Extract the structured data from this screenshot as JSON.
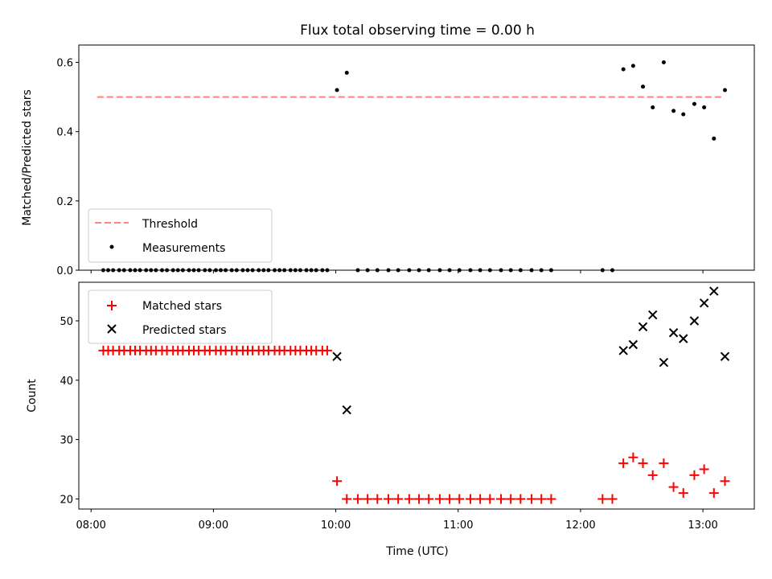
{
  "chart_data": {
    "title": "Flux total observing time = 0.00 h",
    "xlabel": "Time (UTC)",
    "x_ticks": [
      "08:00",
      "09:00",
      "10:00",
      "11:00",
      "12:00",
      "13:00"
    ],
    "x_tick_hours": [
      8,
      9,
      10,
      11,
      12,
      13
    ],
    "x_range_hours": [
      7.9,
      13.42
    ],
    "panels": [
      {
        "type": "scatter",
        "ylabel": "Matched/Predicted stars",
        "ylim": [
          0.0,
          0.65
        ],
        "yticks": [
          0.0,
          0.2,
          0.4,
          0.6
        ],
        "ytick_labels": [
          "0.0",
          "0.2",
          "0.4",
          "0.6"
        ],
        "legend_position": "lower-left",
        "threshold": {
          "name": "Threshold",
          "value": 0.5,
          "x_start": 8.05,
          "x_end": 13.15,
          "color": "#ff7f7f"
        },
        "series": [
          {
            "name": "Measurements",
            "marker": "dot",
            "color": "#000000",
            "points": [
              [
                8.1,
                0
              ],
              [
                8.14,
                0
              ],
              [
                8.18,
                0
              ],
              [
                8.23,
                0
              ],
              [
                8.27,
                0
              ],
              [
                8.32,
                0
              ],
              [
                8.36,
                0
              ],
              [
                8.4,
                0
              ],
              [
                8.45,
                0
              ],
              [
                8.49,
                0
              ],
              [
                8.53,
                0
              ],
              [
                8.58,
                0
              ],
              [
                8.62,
                0
              ],
              [
                8.67,
                0
              ],
              [
                8.71,
                0
              ],
              [
                8.75,
                0
              ],
              [
                8.8,
                0
              ],
              [
                8.84,
                0
              ],
              [
                8.88,
                0
              ],
              [
                8.93,
                0
              ],
              [
                8.97,
                0
              ],
              [
                9.02,
                0
              ],
              [
                9.06,
                0
              ],
              [
                9.1,
                0
              ],
              [
                9.15,
                0
              ],
              [
                9.19,
                0
              ],
              [
                9.24,
                0
              ],
              [
                9.28,
                0
              ],
              [
                9.32,
                0
              ],
              [
                9.37,
                0
              ],
              [
                9.41,
                0
              ],
              [
                9.45,
                0
              ],
              [
                9.5,
                0
              ],
              [
                9.54,
                0
              ],
              [
                9.58,
                0
              ],
              [
                9.63,
                0
              ],
              [
                9.67,
                0
              ],
              [
                9.71,
                0
              ],
              [
                9.76,
                0
              ],
              [
                9.8,
                0
              ],
              [
                9.84,
                0
              ],
              [
                9.89,
                0
              ],
              [
                9.93,
                0
              ],
              [
                10.01,
                0.52
              ],
              [
                10.09,
                0.57
              ],
              [
                10.18,
                0
              ],
              [
                10.26,
                0
              ],
              [
                10.34,
                0
              ],
              [
                10.43,
                0
              ],
              [
                10.51,
                0
              ],
              [
                10.6,
                0
              ],
              [
                10.68,
                0
              ],
              [
                10.76,
                0
              ],
              [
                10.85,
                0
              ],
              [
                10.93,
                0
              ],
              [
                11.01,
                0
              ],
              [
                11.1,
                0
              ],
              [
                11.18,
                0
              ],
              [
                11.26,
                0
              ],
              [
                11.35,
                0
              ],
              [
                11.43,
                0
              ],
              [
                11.51,
                0
              ],
              [
                11.6,
                0
              ],
              [
                11.68,
                0
              ],
              [
                11.76,
                0
              ],
              [
                12.18,
                0
              ],
              [
                12.26,
                0
              ],
              [
                12.35,
                0.58
              ],
              [
                12.43,
                0.59
              ],
              [
                12.51,
                0.53
              ],
              [
                12.59,
                0.47
              ],
              [
                12.68,
                0.6
              ],
              [
                12.76,
                0.46
              ],
              [
                12.84,
                0.45
              ],
              [
                12.93,
                0.48
              ],
              [
                13.01,
                0.47
              ],
              [
                13.09,
                0.38
              ],
              [
                13.18,
                0.52
              ]
            ]
          }
        ]
      },
      {
        "type": "scatter",
        "ylabel": "Count",
        "ylim": [
          18.3,
          56.5
        ],
        "yticks": [
          20,
          30,
          40,
          50
        ],
        "ytick_labels": [
          "20",
          "30",
          "40",
          "50"
        ],
        "legend_position": "upper-left",
        "series": [
          {
            "name": "Matched stars",
            "marker": "plus",
            "color": "#ff0000",
            "points": [
              [
                8.1,
                45
              ],
              [
                8.14,
                45
              ],
              [
                8.18,
                45
              ],
              [
                8.23,
                45
              ],
              [
                8.27,
                45
              ],
              [
                8.32,
                45
              ],
              [
                8.36,
                45
              ],
              [
                8.4,
                45
              ],
              [
                8.45,
                45
              ],
              [
                8.49,
                45
              ],
              [
                8.53,
                45
              ],
              [
                8.58,
                45
              ],
              [
                8.62,
                45
              ],
              [
                8.67,
                45
              ],
              [
                8.71,
                45
              ],
              [
                8.75,
                45
              ],
              [
                8.8,
                45
              ],
              [
                8.84,
                45
              ],
              [
                8.88,
                45
              ],
              [
                8.93,
                45
              ],
              [
                8.97,
                45
              ],
              [
                9.02,
                45
              ],
              [
                9.06,
                45
              ],
              [
                9.1,
                45
              ],
              [
                9.15,
                45
              ],
              [
                9.19,
                45
              ],
              [
                9.24,
                45
              ],
              [
                9.28,
                45
              ],
              [
                9.32,
                45
              ],
              [
                9.37,
                45
              ],
              [
                9.41,
                45
              ],
              [
                9.45,
                45
              ],
              [
                9.5,
                45
              ],
              [
                9.54,
                45
              ],
              [
                9.58,
                45
              ],
              [
                9.63,
                45
              ],
              [
                9.67,
                45
              ],
              [
                9.71,
                45
              ],
              [
                9.76,
                45
              ],
              [
                9.8,
                45
              ],
              [
                9.84,
                45
              ],
              [
                9.89,
                45
              ],
              [
                9.93,
                45
              ],
              [
                10.01,
                23
              ],
              [
                10.09,
                20
              ],
              [
                10.18,
                20
              ],
              [
                10.26,
                20
              ],
              [
                10.34,
                20
              ],
              [
                10.43,
                20
              ],
              [
                10.51,
                20
              ],
              [
                10.6,
                20
              ],
              [
                10.68,
                20
              ],
              [
                10.76,
                20
              ],
              [
                10.85,
                20
              ],
              [
                10.93,
                20
              ],
              [
                11.01,
                20
              ],
              [
                11.1,
                20
              ],
              [
                11.18,
                20
              ],
              [
                11.26,
                20
              ],
              [
                11.35,
                20
              ],
              [
                11.43,
                20
              ],
              [
                11.51,
                20
              ],
              [
                11.6,
                20
              ],
              [
                11.68,
                20
              ],
              [
                11.76,
                20
              ],
              [
                12.18,
                20
              ],
              [
                12.26,
                20
              ],
              [
                12.35,
                26
              ],
              [
                12.43,
                27
              ],
              [
                12.51,
                26
              ],
              [
                12.59,
                24
              ],
              [
                12.68,
                26
              ],
              [
                12.76,
                22
              ],
              [
                12.84,
                21
              ],
              [
                12.93,
                24
              ],
              [
                13.01,
                25
              ],
              [
                13.09,
                21
              ],
              [
                13.18,
                23
              ]
            ]
          },
          {
            "name": "Predicted stars",
            "marker": "x",
            "color": "#000000",
            "points": [
              [
                10.01,
                44
              ],
              [
                10.09,
                35
              ],
              [
                12.35,
                45
              ],
              [
                12.43,
                46
              ],
              [
                12.51,
                49
              ],
              [
                12.59,
                51
              ],
              [
                12.68,
                43
              ],
              [
                12.76,
                48
              ],
              [
                12.84,
                47
              ],
              [
                12.93,
                50
              ],
              [
                13.01,
                53
              ],
              [
                13.09,
                55
              ],
              [
                13.18,
                44
              ]
            ]
          }
        ]
      }
    ]
  }
}
